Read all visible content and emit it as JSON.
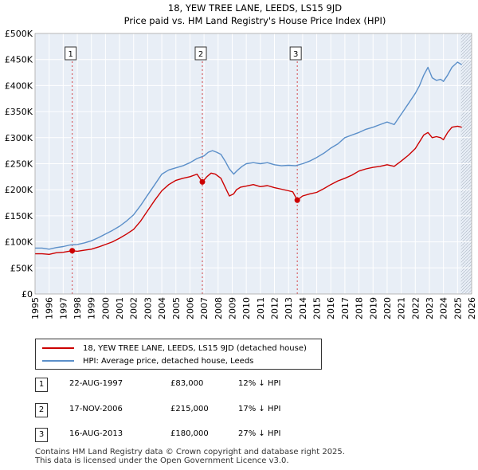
{
  "chart_data": {
    "type": "line",
    "title": "18, YEW TREE LANE, LEEDS, LS15 9JD",
    "subtitle": "Price paid vs. HM Land Registry's House Price Index (HPI)",
    "xlabel": "",
    "ylabel": "",
    "xlim": [
      1995,
      2026
    ],
    "ylim": [
      0,
      500000
    ],
    "y_ticks": [
      0,
      50000,
      100000,
      150000,
      200000,
      250000,
      300000,
      350000,
      400000,
      450000,
      500000
    ],
    "y_tick_labels": [
      "£0",
      "£50K",
      "£100K",
      "£150K",
      "£200K",
      "£250K",
      "£300K",
      "£350K",
      "£400K",
      "£450K",
      "£500K"
    ],
    "x_ticks": [
      1995,
      1996,
      1997,
      1998,
      1999,
      2000,
      2001,
      2002,
      2003,
      2004,
      2005,
      2006,
      2007,
      2008,
      2009,
      2010,
      2011,
      2012,
      2013,
      2014,
      2015,
      2016,
      2017,
      2018,
      2019,
      2020,
      2021,
      2022,
      2023,
      2024,
      2025,
      2026
    ],
    "x_tick_labels": [
      "1995",
      "1996",
      "1997",
      "1998",
      "1999",
      "2000",
      "2001",
      "2002",
      "2003",
      "2004",
      "2005",
      "2006",
      "2007",
      "2008",
      "2009",
      "2010",
      "2011",
      "2012",
      "2013",
      "2014",
      "2015",
      "2016",
      "2017",
      "2018",
      "2019",
      "2020",
      "2021",
      "2022",
      "2023",
      "2024",
      "2025",
      "2026"
    ],
    "grid": true,
    "hatch_from": 2025.25,
    "series": [
      {
        "name": "18, YEW TREE LANE, LEEDS, LS15 9JD (detached house)",
        "color": "#cc0000",
        "x": [
          1995.0,
          1995.5,
          1996.0,
          1996.5,
          1997.0,
          1997.64,
          1998.0,
          1998.5,
          1999.0,
          1999.5,
          2000.0,
          2000.5,
          2001.0,
          2001.5,
          2002.0,
          2002.5,
          2003.0,
          2003.5,
          2004.0,
          2004.5,
          2005.0,
          2005.5,
          2006.0,
          2006.5,
          2006.88,
          2007.2,
          2007.5,
          2007.8,
          2008.2,
          2008.5,
          2008.8,
          2009.1,
          2009.3,
          2009.6,
          2010.0,
          2010.5,
          2011.0,
          2011.5,
          2012.0,
          2012.5,
          2013.0,
          2013.3,
          2013.62,
          2013.8,
          2014.0,
          2014.5,
          2015.0,
          2015.5,
          2016.0,
          2016.5,
          2017.0,
          2017.5,
          2018.0,
          2018.5,
          2019.0,
          2019.5,
          2020.0,
          2020.5,
          2021.0,
          2021.5,
          2022.0,
          2022.3,
          2022.6,
          2022.9,
          2023.2,
          2023.5,
          2023.8,
          2024.0,
          2024.3,
          2024.6,
          2025.0,
          2025.3
        ],
        "values": [
          77000,
          77000,
          76000,
          79000,
          80000,
          83000,
          82000,
          84000,
          86000,
          90000,
          95000,
          100000,
          107000,
          115000,
          124000,
          140000,
          160000,
          180000,
          198000,
          210000,
          218000,
          222000,
          225000,
          230000,
          215000,
          225000,
          232000,
          230000,
          222000,
          205000,
          188000,
          192000,
          200000,
          205000,
          207000,
          210000,
          206000,
          208000,
          204000,
          201000,
          198000,
          196000,
          180000,
          184000,
          188000,
          192000,
          195000,
          202000,
          210000,
          217000,
          222000,
          228000,
          236000,
          240000,
          243000,
          245000,
          248000,
          245000,
          255000,
          266000,
          279000,
          292000,
          305000,
          310000,
          300000,
          302000,
          300000,
          296000,
          310000,
          320000,
          322000,
          320000
        ]
      },
      {
        "name": "HPI: Average price, detached house, Leeds",
        "color": "#5b8fc9",
        "x": [
          1995.0,
          1995.5,
          1996.0,
          1996.5,
          1997.0,
          1997.5,
          1998.0,
          1998.5,
          1999.0,
          1999.5,
          2000.0,
          2000.5,
          2001.0,
          2001.5,
          2002.0,
          2002.5,
          2003.0,
          2003.5,
          2004.0,
          2004.5,
          2005.0,
          2005.5,
          2006.0,
          2006.5,
          2007.0,
          2007.3,
          2007.6,
          2007.9,
          2008.2,
          2008.5,
          2008.8,
          2009.1,
          2009.4,
          2009.7,
          2010.0,
          2010.5,
          2011.0,
          2011.5,
          2012.0,
          2012.5,
          2013.0,
          2013.5,
          2014.0,
          2014.5,
          2015.0,
          2015.5,
          2016.0,
          2016.5,
          2017.0,
          2017.5,
          2018.0,
          2018.5,
          2019.0,
          2019.5,
          2020.0,
          2020.5,
          2021.0,
          2021.5,
          2022.0,
          2022.3,
          2022.6,
          2022.9,
          2023.2,
          2023.5,
          2023.8,
          2024.0,
          2024.3,
          2024.6,
          2025.0,
          2025.3
        ],
        "values": [
          88000,
          88000,
          86000,
          89000,
          91000,
          94000,
          95000,
          98000,
          102000,
          108000,
          115000,
          122000,
          130000,
          140000,
          152000,
          170000,
          190000,
          210000,
          230000,
          238000,
          242000,
          246000,
          252000,
          260000,
          265000,
          272000,
          275000,
          272000,
          268000,
          255000,
          240000,
          230000,
          238000,
          245000,
          250000,
          252000,
          250000,
          252000,
          248000,
          246000,
          247000,
          246000,
          250000,
          255000,
          262000,
          270000,
          280000,
          288000,
          300000,
          305000,
          310000,
          316000,
          320000,
          325000,
          330000,
          325000,
          345000,
          365000,
          385000,
          400000,
          420000,
          435000,
          415000,
          410000,
          412000,
          408000,
          420000,
          435000,
          445000,
          440000
        ]
      }
    ],
    "sales": [
      {
        "label": "1",
        "x": 1997.64,
        "value": 83000
      },
      {
        "label": "2",
        "x": 2006.88,
        "value": 215000
      },
      {
        "label": "3",
        "x": 2013.62,
        "value": 180000
      }
    ]
  },
  "legend": {
    "property": "18, YEW TREE LANE, LEEDS, LS15 9JD (detached house)",
    "hpi": "HPI: Average price, detached house, Leeds"
  },
  "transactions": [
    {
      "num": "1",
      "date": "22-AUG-1997",
      "price": "£83,000",
      "hpi": "12% ↓ HPI"
    },
    {
      "num": "2",
      "date": "17-NOV-2006",
      "price": "£215,000",
      "hpi": "17% ↓ HPI"
    },
    {
      "num": "3",
      "date": "16-AUG-2013",
      "price": "£180,000",
      "hpi": "27% ↓ HPI"
    }
  ],
  "footer": {
    "line1": "Contains HM Land Registry data © Crown copyright and database right 2025.",
    "line2": "This data is licensed under the Open Government Licence v3.0."
  },
  "colors": {
    "property": "#cc0000",
    "hpi": "#5b8fc9",
    "plot_bg": "#e8eef6",
    "grid": "#ffffff"
  }
}
